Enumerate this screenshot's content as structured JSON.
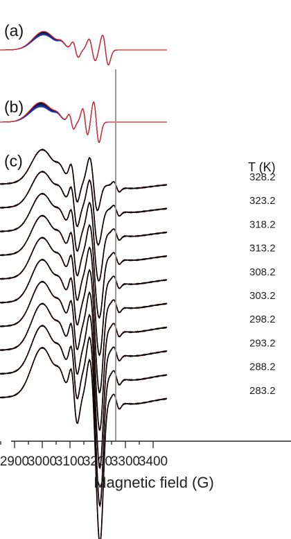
{
  "chart_data": {
    "type": "line",
    "xlabel": "Magnetic field (G)",
    "xlim": [
      2835,
      3440
    ],
    "x_ticks": [
      2900,
      3000,
      3100,
      3200,
      3300,
      3400
    ],
    "x_minor_step": 50,
    "grid": false,
    "reference_line_x": 3265,
    "reference_line_color": "#999999",
    "panels": [
      {
        "label": "(a)",
        "description_colors": {
          "gradient_start": "#000000",
          "gradient_end": "#1f3fbf",
          "highlight": "#e32222"
        }
      },
      {
        "label": "(b)",
        "description_colors": {
          "gradient_start": "#000000",
          "gradient_end": "#1f3fbf",
          "highlight": "#e32222"
        }
      },
      {
        "label": "(c)",
        "legend_header": "T (K)",
        "colors": {
          "experimental": "#000000",
          "simulated": "#e32222"
        }
      }
    ],
    "temperatures": [
      "328.2",
      "323.2",
      "318.2",
      "313.2",
      "308.2",
      "303.2",
      "298.2",
      "293.2",
      "288.2",
      "283.2"
    ],
    "spectrum_features": [
      {
        "field": 3000,
        "kind": "broad peak"
      },
      {
        "field": 3060,
        "kind": "shoulder"
      },
      {
        "field": 3100,
        "kind": "peak"
      },
      {
        "field": 3140,
        "kind": "trough"
      },
      {
        "field": 3170,
        "kind": "peak"
      },
      {
        "field": 3210,
        "kind": "deep trough"
      },
      {
        "field": 3265,
        "kind": "small trough"
      }
    ]
  }
}
